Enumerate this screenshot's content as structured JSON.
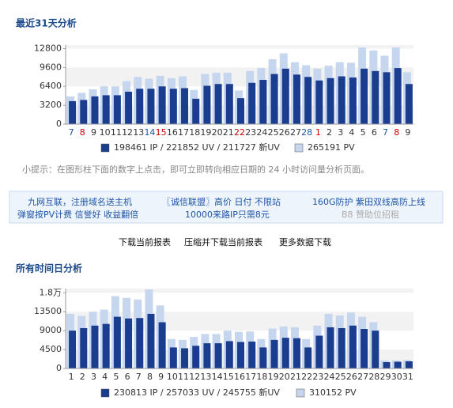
{
  "chart_data": [
    {
      "type": "bar",
      "title": "最近31天分析",
      "categories": [
        "7",
        "8",
        "9",
        "10",
        "11",
        "12",
        "13",
        "14",
        "15",
        "16",
        "17",
        "18",
        "19",
        "20",
        "21",
        "22",
        "23",
        "24",
        "25",
        "26",
        "27",
        "28",
        "1",
        "2",
        "3",
        "4",
        "5",
        "6",
        "7",
        "8",
        "9"
      ],
      "category_colors": [
        "#1d55a8",
        "#cc0000",
        "#333",
        "#333",
        "#333",
        "#333",
        "#333",
        "#1d55a8",
        "#cc0000",
        "#333",
        "#333",
        "#333",
        "#333",
        "#333",
        "#333",
        "#cc0000",
        "#333",
        "#333",
        "#333",
        "#333",
        "#333",
        "#1d55a8",
        "#cc0000",
        "#333",
        "#333",
        "#333",
        "#333",
        "#333",
        "#1d55a8",
        "#cc0000",
        "#333"
      ],
      "series": [
        {
          "name": "265191 PV",
          "color": "#c6d6ee",
          "values": [
            4700,
            5300,
            5900,
            6400,
            6400,
            7300,
            8000,
            7700,
            8200,
            7800,
            8100,
            5800,
            8500,
            8700,
            8700,
            5700,
            9000,
            9500,
            11000,
            12000,
            10500,
            10000,
            9400,
            9900,
            10500,
            10400,
            13000,
            12500,
            11600,
            13000,
            8800
          ]
        },
        {
          "name": "198461 IP / 221852 UV / 211727 新UV",
          "color": "#1a3d8f",
          "values": [
            3900,
            4100,
            4700,
            4900,
            4900,
            5500,
            6000,
            6000,
            6400,
            6000,
            6100,
            4300,
            6500,
            6800,
            6800,
            4400,
            7000,
            7500,
            8500,
            9400,
            8400,
            8000,
            7400,
            7800,
            8100,
            7900,
            9400,
            9000,
            8800,
            9500,
            6800
          ]
        }
      ],
      "ylim": [
        0,
        13400
      ],
      "yticks": [
        0,
        3200,
        6400,
        9600,
        12800
      ]
    },
    {
      "type": "bar",
      "title": "所有时间日分析",
      "categories": [
        "1",
        "2",
        "3",
        "4",
        "5",
        "6",
        "7",
        "8",
        "9",
        "10",
        "11",
        "12",
        "13",
        "14",
        "15",
        "16",
        "17",
        "18",
        "19",
        "20",
        "21",
        "22",
        "23",
        "24",
        "25",
        "26",
        "27",
        "28",
        "29",
        "30",
        "31"
      ],
      "series": [
        {
          "name": "310152 PV",
          "color": "#c6d6ee",
          "values": [
            13000,
            12500,
            13500,
            14000,
            17200,
            16800,
            16400,
            18800,
            15000,
            7000,
            6800,
            7500,
            8200,
            8200,
            9000,
            8700,
            8800,
            7000,
            9500,
            10000,
            9800,
            7000,
            10200,
            13000,
            12600,
            13300,
            12300,
            11000,
            1900,
            1900,
            2000
          ]
        },
        {
          "name": "230813 IP / 257033 UV / 245755 新UV",
          "color": "#1a3d8f",
          "values": [
            9000,
            9600,
            10200,
            10600,
            12300,
            11900,
            12000,
            13000,
            11000,
            5000,
            4800,
            5400,
            6000,
            6000,
            6500,
            6300,
            6400,
            5000,
            6800,
            7300,
            7200,
            5000,
            7800,
            9800,
            9600,
            10200,
            9400,
            9000,
            1500,
            1600,
            1700
          ]
        }
      ],
      "ylim": [
        0,
        19000
      ],
      "yticks": [
        0,
        4500,
        9000,
        13500,
        {
          "value": 18000,
          "label": "1.8万"
        }
      ]
    }
  ],
  "tip": "小提示：在图形柱下面的数字上点击，即可立即转向相应日期的 24 小时访问量分析页面。",
  "ads": [
    "九网互联，注册域名送主机",
    "〖诚信联盟〗高价 日付 不限站",
    "160G防护 紫田双线高防上线",
    "弹窗按PV计费 信誉好 收益翻倍",
    "10000来路IP只需8元",
    "B8 赞助位招租"
  ],
  "links": [
    "下载当前报表",
    "压缩并下载当前报表",
    "更多数据下载"
  ]
}
